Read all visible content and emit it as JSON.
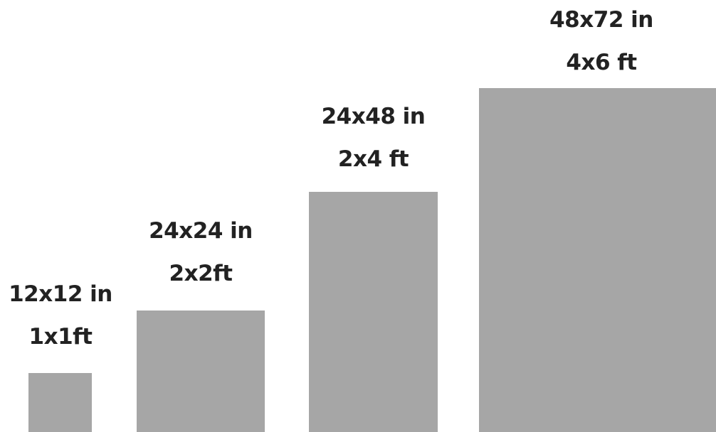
{
  "colors": {
    "background": "#ffffff",
    "rect_fill": "#a6a6a6",
    "text": "#222222"
  },
  "sizes": [
    {
      "inches": "12x12 in",
      "feet": "1x1ft"
    },
    {
      "inches": "24x24 in",
      "feet": "2x2ft"
    },
    {
      "inches": "24x48 in",
      "feet": "2x4 ft"
    },
    {
      "inches": "48x72 in",
      "feet": "4x6 ft"
    }
  ]
}
